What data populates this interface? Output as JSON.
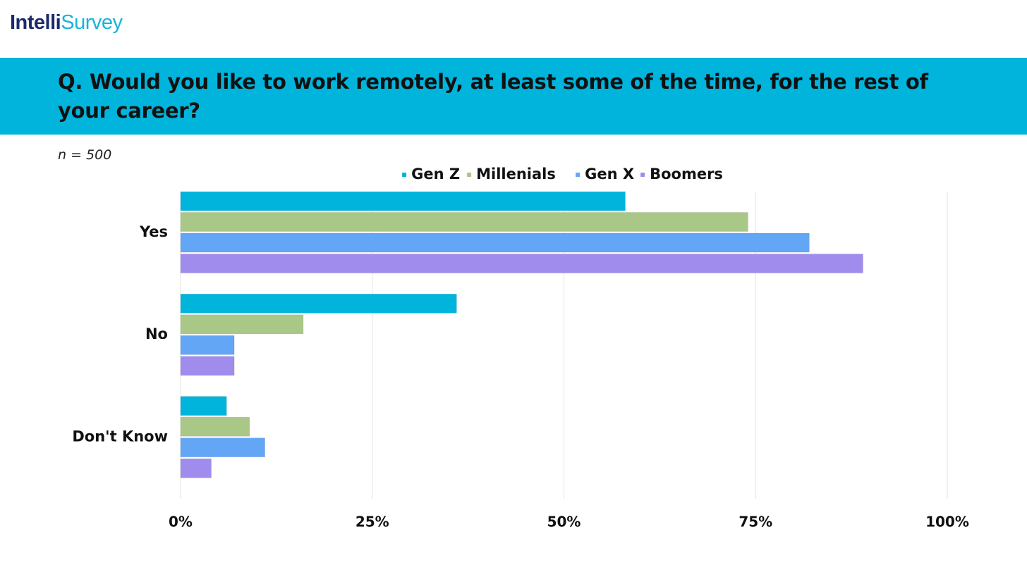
{
  "brand": {
    "part1": "Intelli",
    "part2": "Survey"
  },
  "question": "Q. Would you like to work remotely, at least some of the time, for the rest of your career?",
  "sample_size": "n = 500",
  "colors": {
    "banner": "#00b4dc",
    "gen_z": "#00b4dc",
    "millenials": "#a9c887",
    "gen_x": "#63a6f6",
    "boomers": "#a08ced"
  },
  "chart_data": {
    "type": "bar",
    "orientation": "horizontal",
    "categories": [
      "Yes",
      "No",
      "Don't Know"
    ],
    "series": [
      {
        "name": "Gen Z",
        "color": "#00b4dc",
        "values": [
          58,
          36,
          6
        ]
      },
      {
        "name": "Millenials",
        "color": "#a9c887",
        "values": [
          74,
          16,
          9
        ]
      },
      {
        "name": "Gen X",
        "color": "#63a6f6",
        "values": [
          82,
          7,
          11
        ]
      },
      {
        "name": "Boomers",
        "color": "#a08ced",
        "values": [
          89,
          7,
          4
        ]
      }
    ],
    "xlim": [
      0,
      100
    ],
    "x_ticks": [
      "0%",
      "25%",
      "50%",
      "75%",
      "100%"
    ],
    "x_tick_values": [
      0,
      25,
      50,
      75,
      100
    ],
    "legend_position": "top-center",
    "grid": true
  }
}
